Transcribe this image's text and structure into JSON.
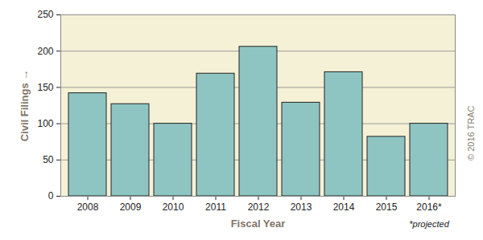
{
  "chart_data": {
    "type": "bar",
    "categories": [
      "2008",
      "2009",
      "2010",
      "2011",
      "2012",
      "2013",
      "2014",
      "2015",
      "2016*"
    ],
    "values": [
      142,
      127,
      100,
      169,
      206,
      129,
      171,
      82,
      100
    ],
    "color": "#8ec5c2",
    "xlabel": "Fiscal Year",
    "ylabel": "Civil Filings",
    "ylim": [
      0,
      250
    ],
    "yticks": [
      0,
      50,
      100,
      150,
      200,
      250
    ],
    "grid": true,
    "annotations": [
      "*projected",
      "© 2016 TRAC"
    ]
  }
}
